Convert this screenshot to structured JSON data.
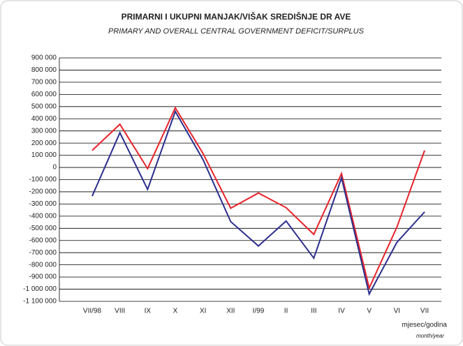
{
  "chart_data": {
    "type": "line",
    "title": "PRIMARNI I UKUPNI MANJAK/VIŠAK SREDIŠNJE DR AVE",
    "subtitle": "PRIMARY AND OVERALL CENTRAL GOVERNMENT DEFICIT/SURPLUS",
    "x_label": "mjesec/godina",
    "x_label_en": "month/year",
    "categories": [
      "VII/98",
      "VIII",
      "IX",
      "X",
      "XI",
      "XII",
      "I/99",
      "II",
      "III",
      "IV",
      "V",
      "VI",
      "VII"
    ],
    "series": [
      {
        "color": "#e8232a",
        "values": [
          140000,
          355000,
          -10000,
          490000,
          115000,
          -335000,
          -210000,
          -330000,
          -550000,
          -50000,
          -990000,
          -490000,
          140000
        ]
      },
      {
        "color": "#2b2e8c",
        "values": [
          -235000,
          285000,
          -180000,
          460000,
          65000,
          -445000,
          -645000,
          -440000,
          -745000,
          -85000,
          -1040000,
          -615000,
          -365000
        ]
      }
    ],
    "ylim": [
      -1100000,
      900000
    ],
    "yticks": [
      {
        "value": 900000,
        "label": "900 000"
      },
      {
        "value": 800000,
        "label": "800 000"
      },
      {
        "value": 700000,
        "label": "700 000"
      },
      {
        "value": 600000,
        "label": "600 000"
      },
      {
        "value": 500000,
        "label": "500 000"
      },
      {
        "value": 400000,
        "label": "400 000"
      },
      {
        "value": 300000,
        "label": "300 000"
      },
      {
        "value": 200000,
        "label": "200 000"
      },
      {
        "value": 100000,
        "label": "100 000"
      },
      0,
      {
        "value": -100000,
        "label": "-100 000"
      },
      {
        "value": -200000,
        "label": "-200 000"
      },
      {
        "value": -300000,
        "label": "-300 000"
      },
      {
        "value": -400000,
        "label": "-400 000"
      },
      {
        "value": -500000,
        "label": "-500 000"
      },
      {
        "value": -600000,
        "label": "-600 000"
      },
      {
        "value": -700000,
        "label": "-700 000"
      },
      {
        "value": -800000,
        "label": "-800 000"
      },
      {
        "value": -900000,
        "label": "-900 000"
      },
      {
        "value": -1000000,
        "label": "-1 000 000"
      },
      {
        "value": -1100000,
        "label": "-1 100 000"
      }
    ],
    "grid": true
  }
}
